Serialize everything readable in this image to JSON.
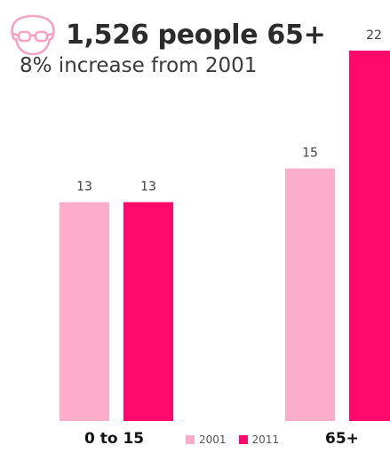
{
  "header": {
    "headline": "1,526 people 65+",
    "subheadline": "8% increase from 2001",
    "icon": "elderly-person-icon",
    "icon_color": "#f4a3c4"
  },
  "chart_data": {
    "type": "bar",
    "categories": [
      "0 to 15",
      "65+"
    ],
    "series": [
      {
        "name": "2001",
        "values": [
          13,
          15
        ],
        "color": "#fbadc9"
      },
      {
        "name": "2011",
        "values": [
          13,
          22
        ],
        "color": "#ff0a6c"
      }
    ],
    "ylim": [
      0,
      22
    ],
    "grid": false,
    "legend_position": "bottom-center"
  }
}
